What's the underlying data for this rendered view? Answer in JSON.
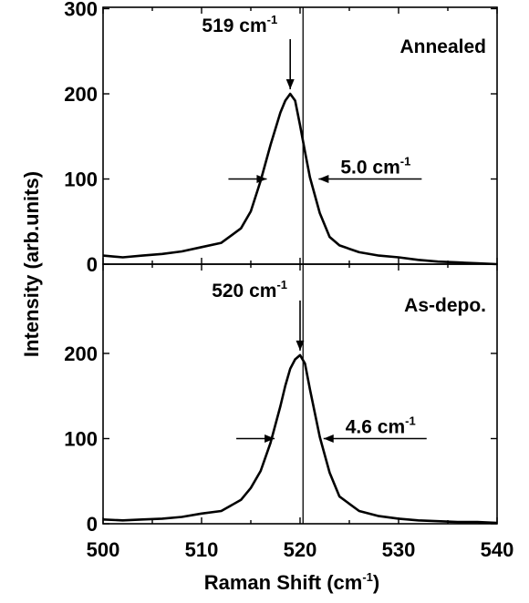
{
  "chart_data": {
    "type": "line",
    "xlabel": "Raman Shift",
    "xlabel_unit": "(cm",
    "xlabel_unit_sup": "-1",
    "xlabel_unit_close": ")",
    "ylabel": "Intensity  (arb.units)",
    "xlim": [
      500,
      540
    ],
    "x_ticks": [
      "500",
      "510",
      "520",
      "530",
      "540"
    ],
    "vertical_reference_line_x": 520.3,
    "panels": [
      {
        "name": "Annealed",
        "ylim": [
          0,
          300
        ],
        "y_ticks": [
          "0",
          "100",
          "200",
          "300"
        ],
        "series": [
          {
            "x": [
              500,
              502,
              504,
              506,
              508,
              510,
              512,
              514,
              515,
              516,
              517,
              518,
              518.5,
              519,
              519.5,
              520,
              520.5,
              521,
              522,
              523,
              524,
              526,
              528,
              530,
              532,
              534,
              536,
              538,
              540
            ],
            "y": [
              10,
              8,
              10,
              12,
              15,
              20,
              25,
              42,
              62,
              98,
              140,
              178,
              192,
              200,
              192,
              163,
              132,
              102,
              60,
              32,
              22,
              14,
              10,
              8,
              5,
              3,
              2,
              1,
              0
            ]
          }
        ],
        "peak_label": "519 cm",
        "peak_label_sup": "-1",
        "peak_x": 519,
        "fwhm_label": "5.0 cm",
        "fwhm_label_sup": "-1",
        "fwhm_left_x": 516.8,
        "fwhm_right_x": 521.7,
        "fwhm_y": 100
      },
      {
        "name": "As-depo.",
        "ylim": [
          0,
          300
        ],
        "y_ticks": [
          "0",
          "100",
          "200"
        ],
        "series": [
          {
            "x": [
              500,
              502,
              504,
              506,
              508,
              510,
              512,
              514,
              515,
              516,
              517,
              518,
              518.5,
              519,
              519.5,
              520,
              520.5,
              521,
              522,
              523,
              524,
              526,
              528,
              530,
              532,
              534,
              536,
              538,
              540
            ],
            "y": [
              5,
              4,
              5,
              6,
              8,
              12,
              15,
              28,
              42,
              62,
              95,
              138,
              162,
              182,
              193,
              198,
              188,
              158,
              102,
              60,
              32,
              15,
              9,
              6,
              4,
              3,
              2,
              2,
              1
            ]
          }
        ],
        "peak_label": "520 cm",
        "peak_label_sup": "-1",
        "peak_x": 520,
        "fwhm_label": "4.6 cm",
        "fwhm_label_sup": "-1",
        "fwhm_left_x": 517.6,
        "fwhm_right_x": 522.2,
        "fwhm_y": 100
      }
    ]
  }
}
